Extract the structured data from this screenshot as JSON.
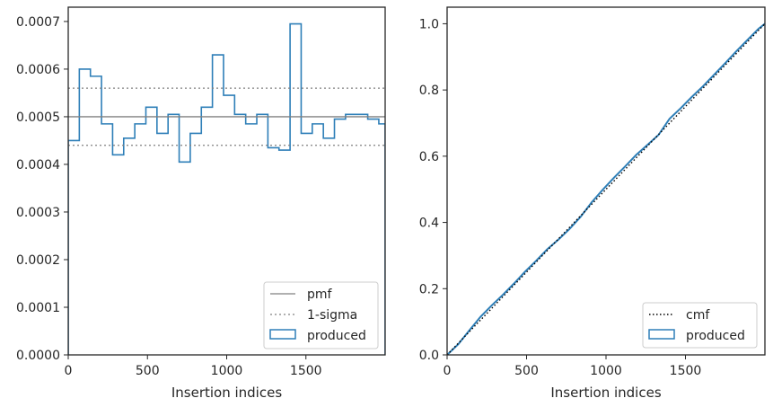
{
  "colors": {
    "produced": "#2e7fb8",
    "pmf": "#808080",
    "sigma": "#808080",
    "cmf": "#000000",
    "axes": "#262626"
  },
  "chart_data": [
    {
      "type": "histogram-step",
      "xlabel": "Insertion indices",
      "ylabel": "",
      "xlim": [
        0,
        2000
      ],
      "ylim": [
        0,
        0.00073
      ],
      "xticks": [
        0,
        500,
        1000,
        1500
      ],
      "xtick_labels": [
        "0",
        "500",
        "1000",
        "1500"
      ],
      "yticks": [
        0,
        0.0001,
        0.0002,
        0.0003,
        0.0004,
        0.0005,
        0.0006,
        0.0007
      ],
      "ytick_labels": [
        "0.0000",
        "0.0001",
        "0.0002",
        "0.0003",
        "0.0004",
        "0.0005",
        "0.0006",
        "0.0007"
      ],
      "bin_edges": [
        0,
        70,
        140,
        210,
        280,
        350,
        420,
        490,
        560,
        630,
        700,
        770,
        840,
        910,
        980,
        1050,
        1120,
        1190,
        1260,
        1330,
        1400,
        1470,
        1540,
        1610,
        1680,
        1750,
        1820,
        1890,
        1960,
        2000
      ],
      "values": [
        0.00045,
        0.0006,
        0.000585,
        0.000485,
        0.00042,
        0.000455,
        0.000485,
        0.00052,
        0.000465,
        0.000505,
        0.000405,
        0.000465,
        0.00052,
        0.00063,
        0.000545,
        0.000505,
        0.000485,
        0.000505,
        0.000435,
        0.00043,
        0.000695,
        0.000465,
        0.000485,
        0.000455,
        0.000495,
        0.000505,
        0.000505,
        0.000495,
        0.000485
      ],
      "pmf": 0.0005,
      "sigma_band": [
        0.00044,
        0.00056
      ],
      "legend": {
        "position": "lower-right",
        "entries": [
          "pmf",
          "1-sigma",
          "produced"
        ]
      }
    },
    {
      "type": "cumulative-step",
      "xlabel": "Insertion indices",
      "ylabel": "",
      "xlim": [
        0,
        2000
      ],
      "ylim": [
        0,
        1.05
      ],
      "xticks": [
        0,
        500,
        1000,
        1500
      ],
      "xtick_labels": [
        "0",
        "500",
        "1000",
        "1500"
      ],
      "yticks": [
        0,
        0.2,
        0.4,
        0.6,
        0.8,
        1.0
      ],
      "ytick_labels": [
        "0.0",
        "0.2",
        "0.4",
        "0.6",
        "0.8",
        "1.0"
      ],
      "cmf": {
        "x": [
          0,
          2000
        ],
        "y": [
          0,
          1.0
        ]
      },
      "produced": {
        "x": [
          0,
          70,
          140,
          210,
          280,
          350,
          420,
          490,
          560,
          630,
          700,
          770,
          840,
          910,
          980,
          1050,
          1120,
          1190,
          1260,
          1330,
          1400,
          1470,
          1540,
          1610,
          1680,
          1750,
          1820,
          1890,
          1960,
          2000
        ],
        "y": [
          0,
          0.032,
          0.074,
          0.115,
          0.149,
          0.181,
          0.215,
          0.251,
          0.284,
          0.319,
          0.348,
          0.38,
          0.417,
          0.461,
          0.499,
          0.535,
          0.569,
          0.604,
          0.634,
          0.664,
          0.713,
          0.745,
          0.779,
          0.811,
          0.846,
          0.881,
          0.917,
          0.951,
          0.985,
          1.0
        ]
      },
      "legend": {
        "position": "lower-right",
        "entries": [
          "cmf",
          "produced"
        ]
      }
    }
  ]
}
